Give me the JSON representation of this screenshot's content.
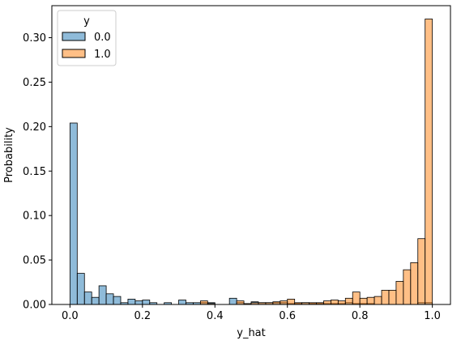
{
  "chart_data": {
    "type": "bar",
    "subtype": "histogram",
    "xlabel": "y_hat",
    "ylabel": "Probability",
    "xlim": [
      -0.05,
      1.05
    ],
    "ylim": [
      0,
      0.336
    ],
    "xticks": [
      "0.0",
      "0.2",
      "0.4",
      "0.6",
      "0.8",
      "1.0"
    ],
    "yticks": [
      "0.00",
      "0.05",
      "0.10",
      "0.15",
      "0.20",
      "0.25",
      "0.30"
    ],
    "bin_width": 0.02,
    "bin_start": 0.0,
    "legend": {
      "title": "y",
      "position": "top-left"
    },
    "series": [
      {
        "name": "0.0",
        "color": "#1f77b4",
        "values": [
          0.204,
          0.035,
          0.014,
          0.008,
          0.021,
          0.012,
          0.009,
          0.002,
          0.006,
          0.004,
          0.005,
          0.002,
          0.0,
          0.002,
          0.0,
          0.005,
          0.002,
          0.002,
          0.002,
          0.002,
          0.0,
          0.0,
          0.007,
          0.002,
          0.001,
          0.003,
          0.002,
          0.002,
          0.002,
          0.002,
          0.001,
          0.001,
          0.002,
          0.001,
          0.001,
          0.001,
          0.001,
          0.001,
          0.002,
          0.001,
          0.001,
          0.001,
          0.0,
          0.0,
          0.0,
          0.0,
          0.0,
          0.0,
          0.002,
          0.002
        ]
      },
      {
        "name": "1.0",
        "color": "#ff7f0e",
        "values": [
          0.0,
          0.0,
          0.0,
          0.0,
          0.0,
          0.0,
          0.0,
          0.0,
          0.0,
          0.0,
          0.0,
          0.0,
          0.0,
          0.0,
          0.0,
          0.0,
          0.0,
          0.0,
          0.004,
          0.001,
          0.0,
          0.0,
          0.0,
          0.004,
          0.001,
          0.002,
          0.002,
          0.002,
          0.003,
          0.004,
          0.006,
          0.002,
          0.002,
          0.002,
          0.002,
          0.004,
          0.005,
          0.004,
          0.007,
          0.014,
          0.007,
          0.008,
          0.009,
          0.016,
          0.016,
          0.026,
          0.039,
          0.047,
          0.074,
          0.321
        ]
      }
    ]
  }
}
